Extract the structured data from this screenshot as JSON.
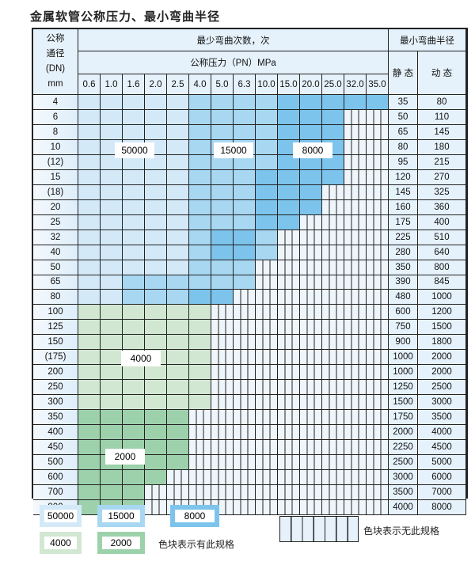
{
  "title": "金属软管公称压力、最小弯曲半径",
  "header": {
    "dn_label": "公称\n通径\n(DN)\nmm",
    "cycles_label": "最少弯曲次数，次",
    "pressure_label": "公称压力（PN）MPa",
    "radius_label": "最小弯曲半径",
    "static_label": "静 态",
    "dynamic_label": "动 态",
    "pressures": [
      "0.6",
      "1.0",
      "1.6",
      "2.0",
      "2.5",
      "4.0",
      "5.0",
      "6.3",
      "10.0",
      "15.0",
      "20.0",
      "25.0",
      "32.0",
      "35.0"
    ]
  },
  "colors": {
    "L": "#d3e9f8",
    "M": "#a8d7f2",
    "D": "#7cc4ec",
    "G4": "#d2e7d2",
    "G2": "#9dd1ac"
  },
  "rows": [
    {
      "dn": "4",
      "fill": "LLLLLMMMMDDDDD",
      "static": "35",
      "dynamic": "80"
    },
    {
      "dn": "6",
      "fill": "LLLLLMMMMDDD",
      "static": "50",
      "dynamic": "110"
    },
    {
      "dn": "8",
      "fill": "LLLLLMMMMDDD",
      "static": "65",
      "dynamic": "145"
    },
    {
      "dn": "10",
      "fill": "LLLLLMMMMDDD",
      "static": "80",
      "dynamic": "180"
    },
    {
      "dn": "(12)",
      "fill": "LLLLLMMMMDDD",
      "static": "95",
      "dynamic": "215"
    },
    {
      "dn": "15",
      "fill": "LLLLLMMMDDDD",
      "static": "120",
      "dynamic": "270"
    },
    {
      "dn": "(18)",
      "fill": "LLLLLMMMDDD",
      "static": "145",
      "dynamic": "325"
    },
    {
      "dn": "20",
      "fill": "LLLLLMMMDDD",
      "static": "160",
      "dynamic": "360"
    },
    {
      "dn": "25",
      "fill": "LLLLLMMMDD",
      "static": "175",
      "dynamic": "400"
    },
    {
      "dn": "32",
      "fill": "LLLLLMDDM",
      "static": "225",
      "dynamic": "510"
    },
    {
      "dn": "40",
      "fill": "LLLLLMDDM",
      "static": "280",
      "dynamic": "640"
    },
    {
      "dn": "50",
      "fill": "LLLLLMMM",
      "static": "350",
      "dynamic": "800"
    },
    {
      "dn": "65",
      "fill": "LLMMMMMM",
      "static": "390",
      "dynamic": "845"
    },
    {
      "dn": "80",
      "fill": "LLMMMDD",
      "static": "480",
      "dynamic": "1000"
    },
    {
      "dn": "100",
      "fill": "GGGGGG",
      "static": "600",
      "dynamic": "1200"
    },
    {
      "dn": "125",
      "fill": "GGGGGG",
      "static": "750",
      "dynamic": "1500"
    },
    {
      "dn": "150",
      "fill": "GGGGGG",
      "static": "900",
      "dynamic": "1800"
    },
    {
      "dn": "(175)",
      "fill": "GGGGGG",
      "static": "1000",
      "dynamic": "2000"
    },
    {
      "dn": "200",
      "fill": "GGGGGG",
      "static": "1000",
      "dynamic": "2000"
    },
    {
      "dn": "250",
      "fill": "GGGGGG",
      "static": "1250",
      "dynamic": "2500"
    },
    {
      "dn": "300",
      "fill": "GGGGGG",
      "static": "1500",
      "dynamic": "3000"
    },
    {
      "dn": "350",
      "fill": "HHHHH",
      "static": "1750",
      "dynamic": "3500"
    },
    {
      "dn": "400",
      "fill": "HHHHH",
      "static": "2000",
      "dynamic": "4000"
    },
    {
      "dn": "450",
      "fill": "HHHHH",
      "static": "2250",
      "dynamic": "4500"
    },
    {
      "dn": "500",
      "fill": "HHHHH",
      "static": "2500",
      "dynamic": "5000"
    },
    {
      "dn": "600",
      "fill": "HHHH",
      "static": "3000",
      "dynamic": "6000"
    },
    {
      "dn": "700",
      "fill": "HHH",
      "static": "3500",
      "dynamic": "7000"
    },
    {
      "dn": "800",
      "fill": "HHH",
      "static": "4000",
      "dynamic": "8000"
    }
  ],
  "zone_labels": {
    "l": "50000",
    "m": "15000",
    "d": "8000",
    "g4": "4000",
    "g2": "2000"
  },
  "legend": {
    "has_spec": "色块表示有此规格",
    "no_spec": "色块表示无此规格"
  }
}
